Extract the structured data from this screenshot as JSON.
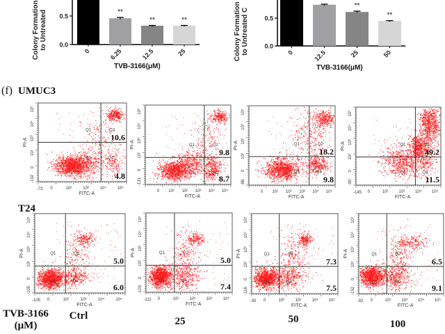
{
  "figure": {
    "panel_f_label": "(f)",
    "cell_lines": [
      "UMUC3",
      "T24"
    ],
    "treatment_label_line1": "TVB-3166",
    "treatment_label_line2": "(μM)",
    "dose_labels": [
      "Ctrl",
      "25",
      "50",
      "100"
    ],
    "colors": {
      "scatter": "#ff1a1a",
      "ctrl_bar": "#000000",
      "bar2": "#a0a0a2",
      "bar3": "#858585",
      "bar4": "#d6d6d6",
      "gate_line": "#333333"
    }
  },
  "chart_data": [
    {
      "type": "bar",
      "title": "",
      "ylabel_line1": "Colony Formation",
      "ylabel_line2": "to Untreated",
      "xlabel": "TVB-3166(μM)",
      "categories": [
        "0",
        "6.25",
        "12.5",
        "25"
      ],
      "values": [
        1.0,
        0.46,
        0.33,
        0.33
      ],
      "errors": [
        0.0,
        0.015,
        0.005,
        0.005
      ],
      "significance": [
        "",
        "**",
        "**",
        "**"
      ],
      "yticks": [
        "0.0",
        "0.5"
      ],
      "ylim": [
        0,
        1.0
      ],
      "note": "top of chart cropped"
    },
    {
      "type": "bar",
      "title": "",
      "ylabel_line1": "Colony Formation",
      "ylabel_line2": "to Untreated C",
      "xlabel": "TVB-3166(μM)",
      "categories": [
        "0",
        "12.5",
        "25",
        "50"
      ],
      "values": [
        1.0,
        0.74,
        0.61,
        0.45
      ],
      "errors": [
        0.0,
        0.01,
        0.015,
        0.005
      ],
      "significance": [
        "",
        "",
        "**",
        "**"
      ],
      "yticks": [
        "0.0",
        "0.5"
      ],
      "ylim": [
        0,
        1.0
      ],
      "note": "top of chart cropped"
    }
  ],
  "flow_plots": [
    {
      "row": "UMUC3",
      "dose": "Ctrl",
      "q2": "10.6",
      "q4": "4.8",
      "xmin": "-73",
      "ymin": "-102",
      "xticks": [
        "0",
        "10²",
        "10³",
        "10⁴",
        "10⁵"
      ],
      "pattern": "umuc_ctrl"
    },
    {
      "row": "UMUC3",
      "dose": "25",
      "q2": "9.8",
      "q4": "8.7",
      "xmin": "",
      "ymin": "-131",
      "xticks": [
        "0",
        "10¹",
        "10²",
        "10³",
        "10⁴",
        "10⁵"
      ],
      "pattern": "umuc_25"
    },
    {
      "row": "UMUC3",
      "dose": "50",
      "q2": "18.2",
      "q4": "9.8",
      "xmin": "",
      "ymin": "-86",
      "xticks": [
        "0",
        "10¹",
        "10²",
        "10³",
        "10⁴",
        "10⁵"
      ],
      "pattern": "umuc_50"
    },
    {
      "row": "UMUC3",
      "dose": "100",
      "q2": "49.2",
      "q4": "11.5",
      "xmin": "-145",
      "ymin": "-90",
      "xticks": [
        "0",
        "10²",
        "10³",
        "10⁴",
        "10⁵"
      ],
      "pattern": "umuc_100"
    },
    {
      "row": "T24",
      "dose": "Ctrl",
      "q2": "5.0",
      "q4": "6.0",
      "xmin": "-105",
      "ymin": "-105",
      "xticks": [
        "0",
        "10²",
        "10³",
        "10⁴",
        "10⁵"
      ],
      "pattern": "t24_ctrl"
    },
    {
      "row": "T24",
      "dose": "25",
      "q2": "5.0",
      "q4": "7.4",
      "xmin": "-111",
      "ymin": "-103",
      "xticks": [
        "0",
        "10²",
        "10³",
        "10⁴",
        "10⁵"
      ],
      "pattern": "t24_25"
    },
    {
      "row": "T24",
      "dose": "50",
      "q2": "7.3",
      "q4": "7.5",
      "xmin": "-30",
      "ymin": "-116",
      "xticks": [
        "0",
        "10²",
        "10³",
        "10⁴",
        "10⁵"
      ],
      "pattern": "t24_50"
    },
    {
      "row": "T24",
      "dose": "100",
      "q2": "6.5",
      "q4": "9.1",
      "xmin": "-92",
      "ymin": "-152",
      "xticks": [
        "0",
        "10²",
        "10³",
        "10⁴",
        "10⁵"
      ],
      "pattern": "t24_100"
    }
  ],
  "flow_axis": {
    "x_label": "FITC-A",
    "y_label": "PI-A",
    "yticks": [
      "0",
      "10²",
      "10³",
      "10⁴",
      "10⁵"
    ],
    "quadrants": [
      "Q1",
      "Q2",
      "Q3",
      "Q4"
    ]
  }
}
